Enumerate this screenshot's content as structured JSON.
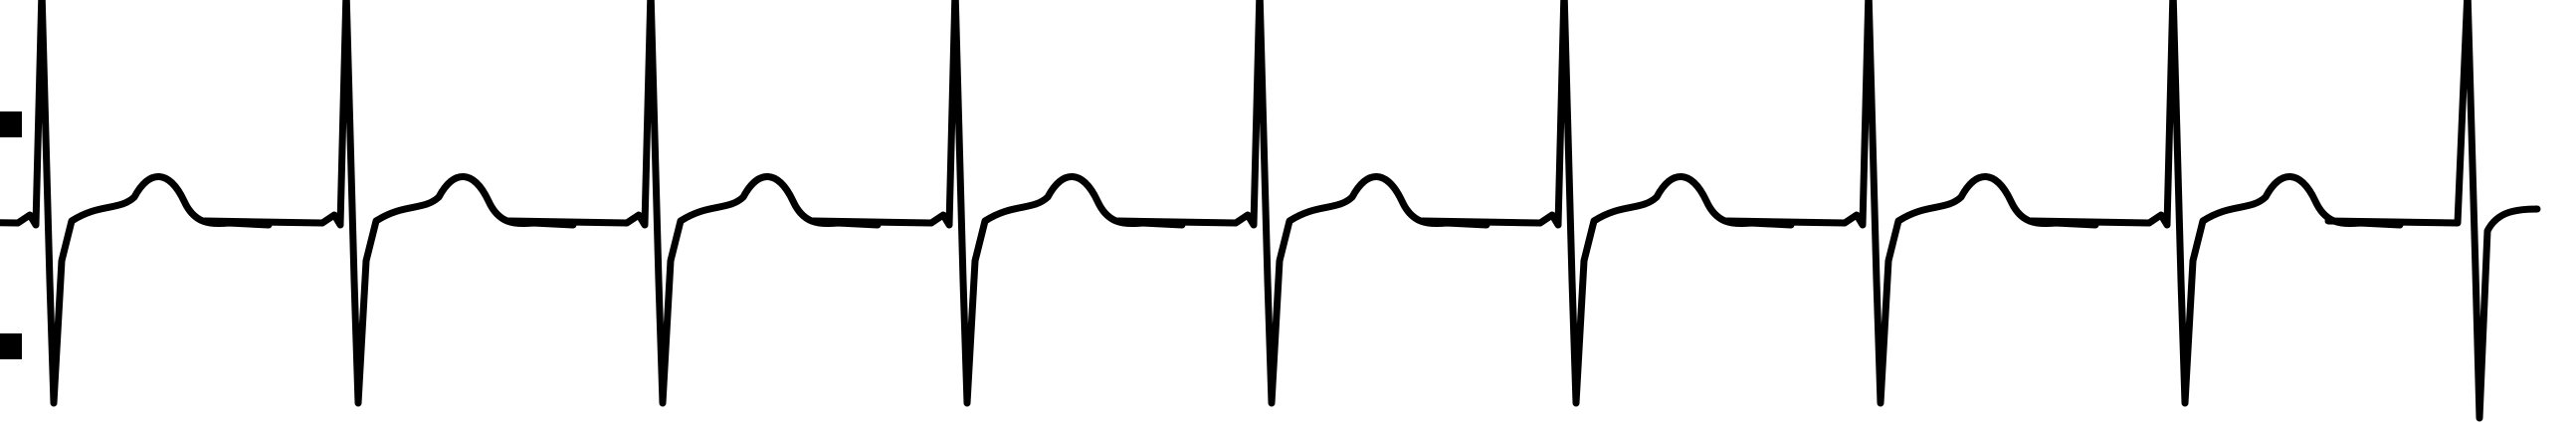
{
  "strip": {
    "background_color": "#ffffff",
    "trace_color": "#000000",
    "beat_count": 8,
    "cut_off": "right"
  }
}
